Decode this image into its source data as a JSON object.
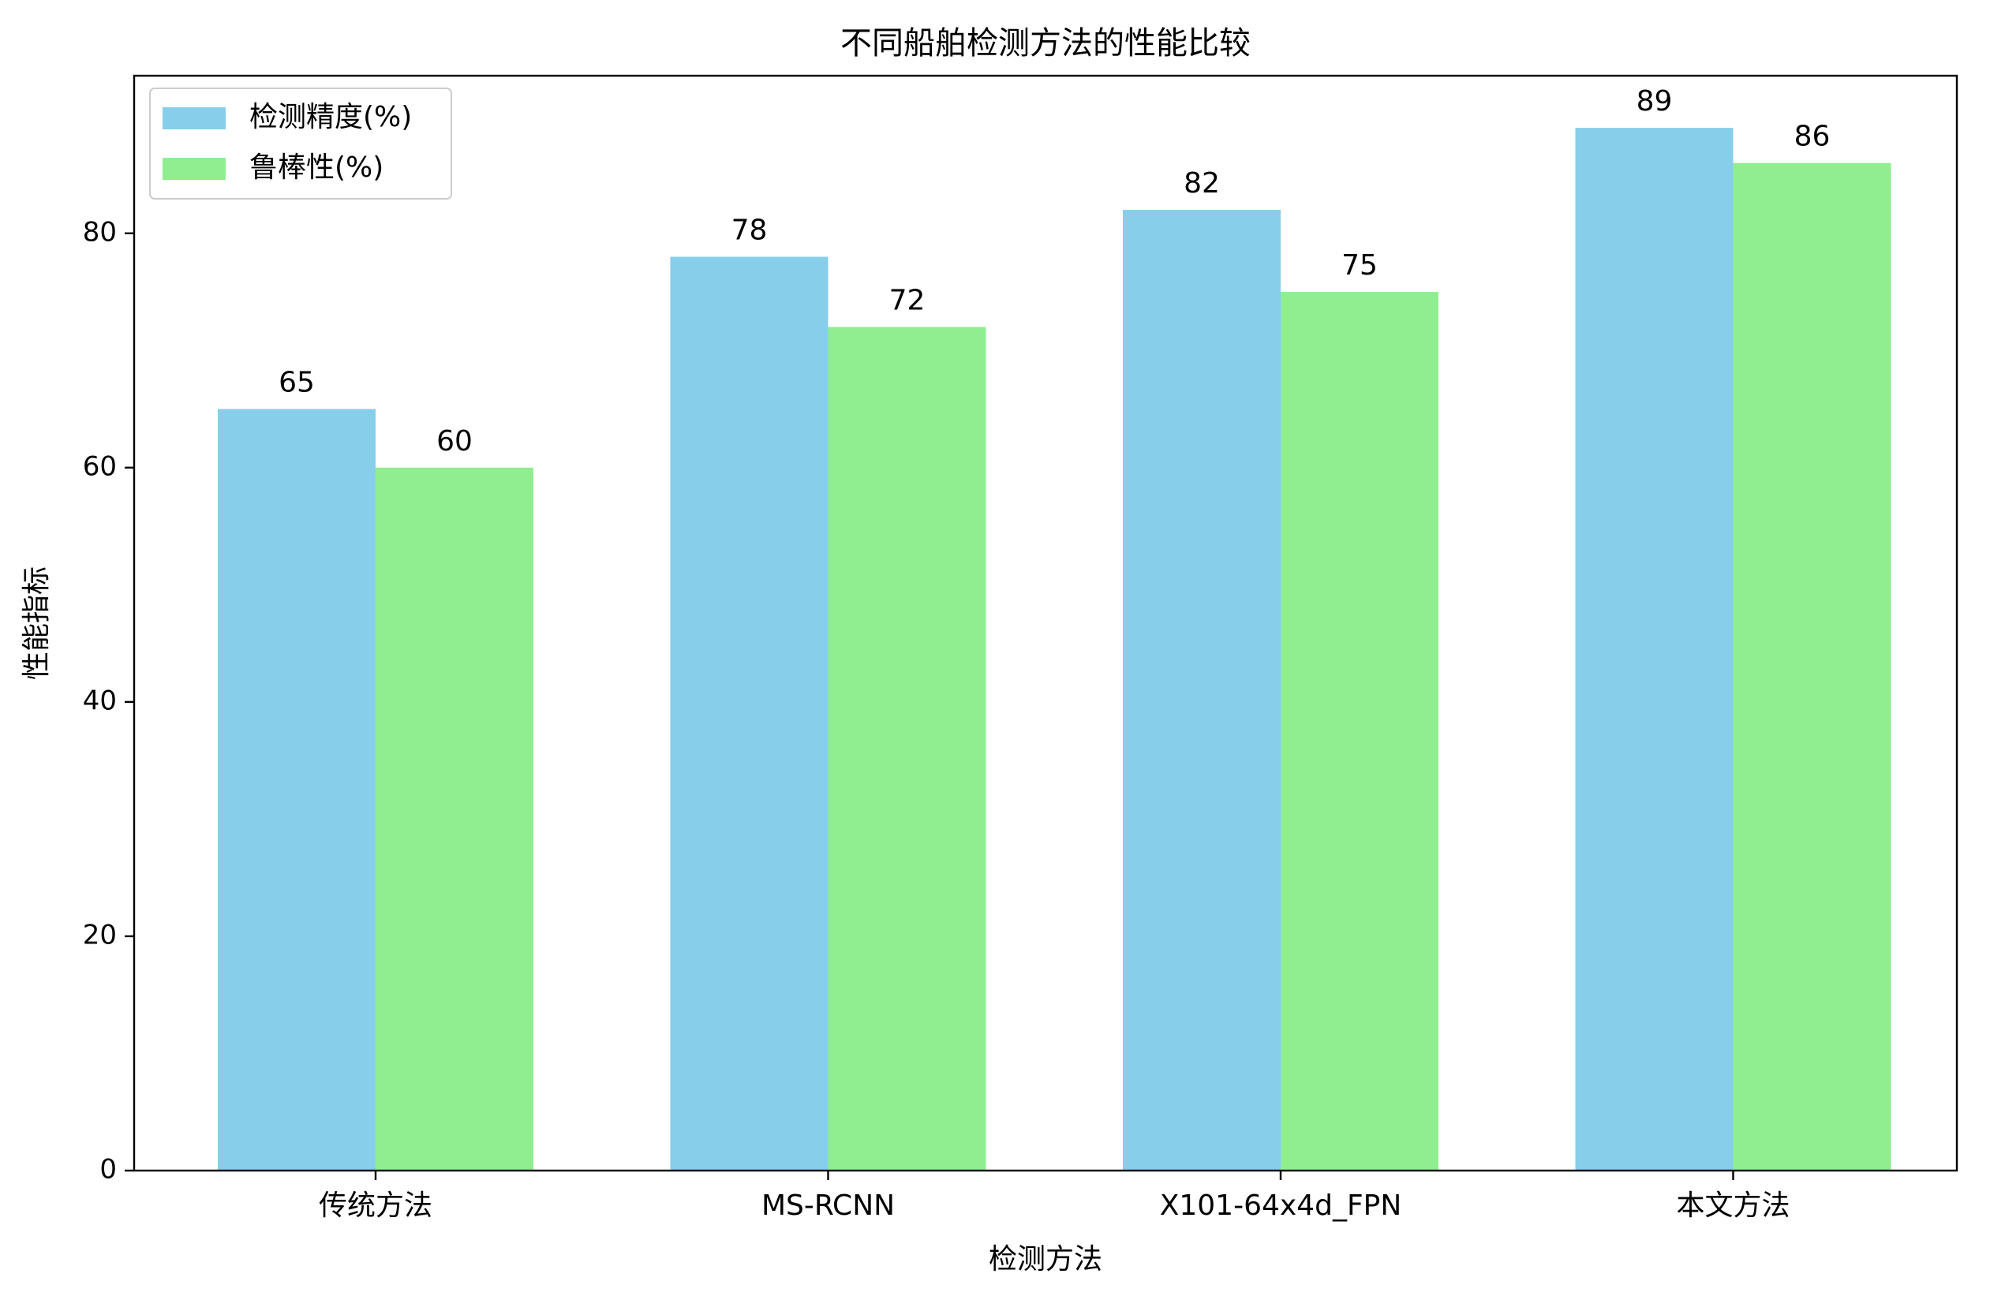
{
  "chart_data": {
    "type": "bar",
    "title": "不同船舶检测方法的性能比较",
    "xlabel": "检测方法",
    "ylabel": "性能指标",
    "categories": [
      "传统方法",
      "MS-RCNN",
      "X101-64x4d_FPN",
      "本文方法"
    ],
    "series": [
      {
        "name": "检测精度(%)",
        "color": "#87CEEB",
        "values": [
          65,
          78,
          82,
          89
        ]
      },
      {
        "name": "鲁棒性(%)",
        "color": "#90EE90",
        "values": [
          60,
          72,
          75,
          86
        ]
      }
    ],
    "ylim": [
      0,
      93.45
    ],
    "yticks": [
      0,
      20,
      40,
      60,
      80
    ],
    "grid": false,
    "legend_position": "top-left",
    "data_labels": true
  }
}
